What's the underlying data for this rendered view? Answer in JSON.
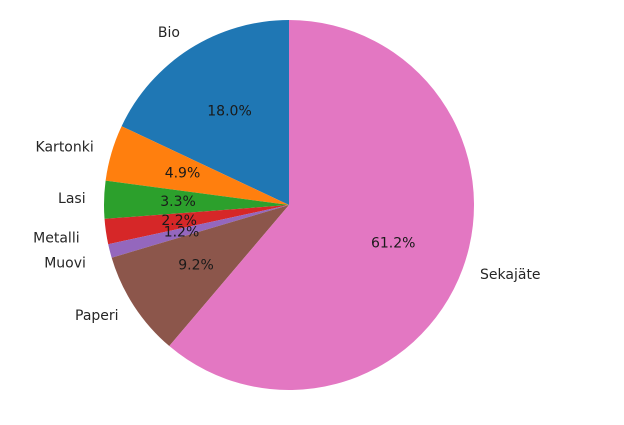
{
  "chart_data": {
    "type": "pie",
    "categories": [
      "Bio",
      "Kartonki",
      "Lasi",
      "Metalli",
      "Muovi",
      "Paperi",
      "Sekajäte"
    ],
    "values": [
      18.0,
      4.9,
      3.3,
      2.2,
      1.2,
      9.2,
      61.2
    ],
    "value_labels": [
      "18.0%",
      "4.9%",
      "3.3%",
      "2.2%",
      "1.2%",
      "9.2%",
      "61.2%"
    ],
    "colors": [
      "#1f77b4",
      "#ff7f0e",
      "#2ca02c",
      "#d62728",
      "#9467bd",
      "#8c564b",
      "#e377c2"
    ],
    "start_angle": "top (12 o'clock)",
    "direction": "counterclockwise",
    "legend": "none",
    "title": ""
  }
}
